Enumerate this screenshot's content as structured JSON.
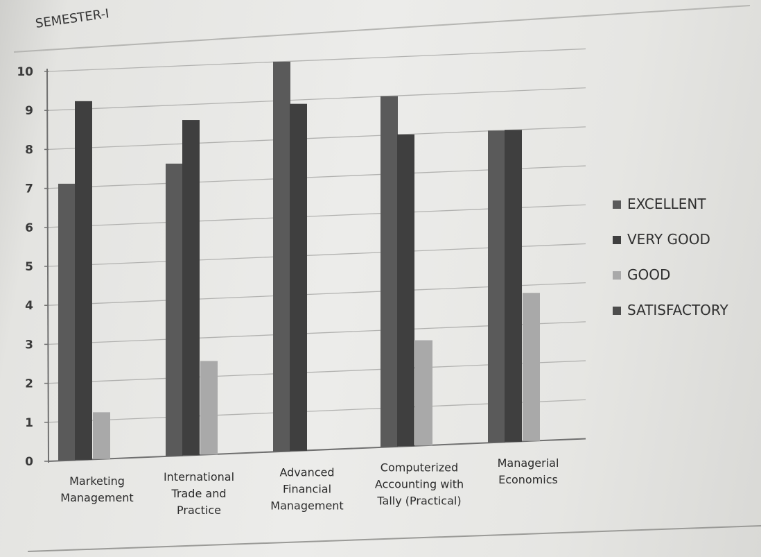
{
  "chart_data": {
    "type": "bar",
    "title": "SEMESTER-I",
    "categories": [
      [
        "Marketing",
        "Management"
      ],
      [
        "International",
        "Trade and",
        "Practice"
      ],
      [
        "Advanced",
        "Financial",
        "Management"
      ],
      [
        "Computerized",
        "Accounting with",
        "Tally (Practical)"
      ],
      [
        "Managerial",
        "Economics"
      ]
    ],
    "series": [
      {
        "name": "EXCELLENT",
        "color": "#5a5a5a",
        "values": [
          7.1,
          7.5,
          10,
          9,
          8
        ]
      },
      {
        "name": "VERY GOOD",
        "color": "#3f3f3f",
        "values": [
          9.2,
          8.6,
          8.9,
          8,
          8
        ]
      },
      {
        "name": "GOOD",
        "color": "#a9a9a9",
        "values": [
          1.2,
          2.4,
          0,
          2.7,
          3.8
        ]
      },
      {
        "name": "SATISFACTORY",
        "color": "#4c4c4c",
        "values": [
          0,
          0,
          0,
          0,
          0
        ]
      }
    ],
    "yticks": [
      "0",
      "1",
      "2",
      "3",
      "4",
      "5",
      "6",
      "7",
      "8",
      "9",
      "10"
    ],
    "ylim": [
      0,
      10
    ],
    "grid": true,
    "legend": "right"
  }
}
